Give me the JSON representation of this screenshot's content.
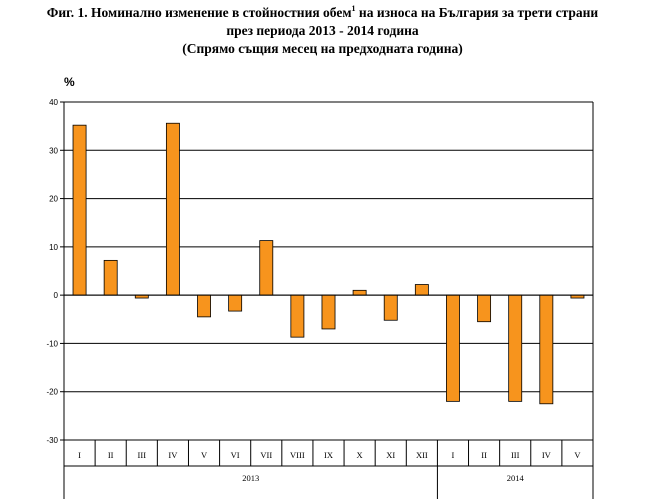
{
  "title": {
    "line1_before": "Фиг. 1. Номинално изменение в стойностния обем",
    "line1_sup": "1",
    "line1_after": " на износа на България за трети страни",
    "line2": "през периода 2013 - 2014 година",
    "line3": "(Спрямо същия месец на предходната година)"
  },
  "chart_data": {
    "type": "bar",
    "ylabel": "%",
    "ylim": [
      -30,
      40
    ],
    "yticks": [
      40,
      30,
      20,
      10,
      0,
      -10,
      -20,
      -30
    ],
    "ytick_labels": [
      "40",
      "30",
      "20",
      "10",
      "0",
      "-10",
      "-20",
      "-30"
    ],
    "grid": true,
    "categories": [
      "I",
      "II",
      "III",
      "IV",
      "V",
      "VI",
      "VII",
      "VIII",
      "IX",
      "X",
      "XI",
      "XII",
      "I",
      "II",
      "III",
      "IV",
      "V"
    ],
    "values": [
      35.2,
      7.2,
      -0.6,
      35.6,
      -4.5,
      -3.3,
      11.3,
      -8.7,
      -7.0,
      1.0,
      -5.2,
      2.2,
      -22.0,
      -5.5,
      -22.0,
      -22.5,
      -0.6
    ],
    "groups": [
      {
        "label": "2013",
        "count": 12
      },
      {
        "label": "2014",
        "count": 5
      }
    ],
    "bar_color": "#f7941d",
    "bar_edge_color": "#000000",
    "grid_color": "#000000"
  }
}
